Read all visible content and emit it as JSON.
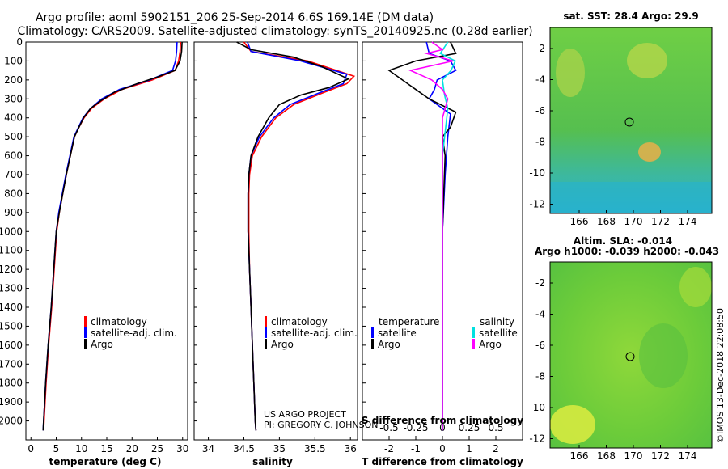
{
  "title_line1": "Argo profile: aoml 5902151_206 25-Sep-2014 6.6S 169.14E (DM data)",
  "title_line2": "Climatology: CARS2009. Satellite-adjusted climatology: synTS_20140925.nc (0.28d earlier)",
  "sst_title": "sat. SST: 28.4 Argo: 29.9",
  "sla_title1": "Altim. SLA: -0.014",
  "sla_title2": "Argo h1000: -0.039 h2000: -0.043",
  "credit1": "US ARGO PROJECT",
  "credit2": "PI: GREGORY C. JOHNSON",
  "watermark": "©IMOS 13-Dec-2018 22:08:50",
  "colors": {
    "climatology": "#ff0000",
    "satellite": "#0000ff",
    "argo": "#000000",
    "sat_salinity": "#00e0e0",
    "argo_salinity": "#ff00ff"
  },
  "depth_ticks": [
    "0",
    "100",
    "200",
    "300",
    "400",
    "500",
    "600",
    "700",
    "800",
    "900",
    "1000",
    "1100",
    "1200",
    "1300",
    "1400",
    "1500",
    "1600",
    "1700",
    "1800",
    "1900",
    "2000"
  ],
  "panels": {
    "temperature": {
      "xlabel": "temperature (deg C)",
      "xticks": [
        "0",
        "5",
        "10",
        "15",
        "20",
        "25",
        "30"
      ],
      "legend": [
        "climatology",
        "satellite-adj. clim.",
        "Argo"
      ]
    },
    "salinity": {
      "xlabel": "salinity",
      "xticks": [
        "34",
        "34.5",
        "35",
        "35.5",
        "36"
      ],
      "legend": [
        "climatology",
        "satellite-adj. clim.",
        "Argo"
      ]
    },
    "difference": {
      "xlabel": "T difference from climatology",
      "xticks": [
        "-2",
        "-1",
        "0",
        "1",
        "2"
      ],
      "xlabel_top": "S difference from climatology",
      "xticks_top": [
        "-0.5",
        "-0.25",
        "0",
        "0.25",
        "0.5"
      ],
      "legend_left_title": "temperature",
      "legend_right_title": "salinity",
      "legend_left": [
        "satellite",
        "Argo"
      ],
      "legend_right": [
        "satellite",
        "Argo"
      ]
    },
    "maps": {
      "yticks": [
        "-2",
        "-4",
        "-6",
        "-8",
        "-10",
        "-12"
      ],
      "xticks": [
        "166",
        "168",
        "170",
        "172",
        "174"
      ]
    }
  },
  "chart_data": [
    {
      "type": "line",
      "xlabel": "temperature (deg C)",
      "ylabel": "",
      "xlim": [
        -1,
        31
      ],
      "ylim": [
        2100,
        0
      ],
      "series": [
        {
          "name": "climatology",
          "points": [
            [
              29.6,
              0
            ],
            [
              29.5,
              50
            ],
            [
              29.2,
              100
            ],
            [
              28.5,
              150
            ],
            [
              24,
              200
            ],
            [
              18,
              250
            ],
            [
              14.5,
              300
            ],
            [
              12,
              350
            ],
            [
              10.5,
              400
            ],
            [
              9.5,
              450
            ],
            [
              8.6,
              500
            ],
            [
              7.8,
              600
            ],
            [
              7,
              700
            ],
            [
              6.3,
              800
            ],
            [
              5.6,
              900
            ],
            [
              5.1,
              1000
            ],
            [
              4.6,
              1200
            ],
            [
              4.1,
              1400
            ],
            [
              3.5,
              1600
            ],
            [
              3,
              1800
            ],
            [
              2.6,
              2000
            ],
            [
              2.5,
              2050
            ]
          ]
        },
        {
          "name": "satellite-adj. clim.",
          "points": [
            [
              28.9,
              0
            ],
            [
              28.8,
              50
            ],
            [
              28.6,
              100
            ],
            [
              28,
              150
            ],
            [
              23.5,
              200
            ],
            [
              17.5,
              250
            ],
            [
              14,
              300
            ],
            [
              11.8,
              350
            ],
            [
              10.3,
              400
            ],
            [
              9.4,
              450
            ],
            [
              8.5,
              500
            ],
            [
              7.7,
              600
            ],
            [
              6.9,
              700
            ],
            [
              6.2,
              800
            ],
            [
              5.5,
              900
            ],
            [
              5,
              1000
            ],
            [
              4.5,
              1200
            ],
            [
              4,
              1400
            ],
            [
              3.4,
              1600
            ],
            [
              2.9,
              1800
            ],
            [
              2.5,
              2000
            ],
            [
              2.4,
              2050
            ]
          ]
        },
        {
          "name": "Argo",
          "points": [
            [
              29.9,
              0
            ],
            [
              29.8,
              50
            ],
            [
              29.5,
              100
            ],
            [
              28.5,
              150
            ],
            [
              25,
              185
            ],
            [
              21,
              220
            ],
            [
              16.5,
              265
            ],
            [
              13.8,
              310
            ],
            [
              11.8,
              350
            ],
            [
              10.4,
              400
            ],
            [
              9.5,
              450
            ],
            [
              8.6,
              500
            ],
            [
              7.8,
              600
            ],
            [
              7,
              700
            ],
            [
              6.3,
              800
            ],
            [
              5.6,
              900
            ],
            [
              5,
              1000
            ],
            [
              4.5,
              1200
            ],
            [
              4,
              1400
            ],
            [
              3.4,
              1600
            ],
            [
              2.9,
              1800
            ],
            [
              2.5,
              2000
            ],
            [
              2.4,
              2050
            ]
          ]
        }
      ]
    },
    {
      "type": "line",
      "xlabel": "salinity",
      "ylabel": "",
      "xlim": [
        33.8,
        36.1
      ],
      "ylim": [
        2100,
        0
      ],
      "series": [
        {
          "name": "climatology",
          "points": [
            [
              34.5,
              0
            ],
            [
              34.6,
              50
            ],
            [
              35.4,
              100
            ],
            [
              36.05,
              180
            ],
            [
              35.95,
              220
            ],
            [
              35.6,
              270
            ],
            [
              35.2,
              330
            ],
            [
              34.95,
              400
            ],
            [
              34.75,
              500
            ],
            [
              34.62,
              600
            ],
            [
              34.58,
              700
            ],
            [
              34.57,
              800
            ],
            [
              34.57,
              1000
            ],
            [
              34.58,
              1200
            ],
            [
              34.6,
              1400
            ],
            [
              34.62,
              1600
            ],
            [
              34.64,
              1800
            ],
            [
              34.66,
              2000
            ],
            [
              34.67,
              2050
            ]
          ]
        },
        {
          "name": "satellite-adj. clim.",
          "points": [
            [
              34.55,
              0
            ],
            [
              34.6,
              50
            ],
            [
              35.3,
              100
            ],
            [
              35.95,
              170
            ],
            [
              35.9,
              220
            ],
            [
              35.55,
              270
            ],
            [
              35.15,
              330
            ],
            [
              34.92,
              400
            ],
            [
              34.72,
              500
            ],
            [
              34.6,
              600
            ],
            [
              34.57,
              700
            ],
            [
              34.56,
              800
            ],
            [
              34.56,
              1000
            ],
            [
              34.58,
              1200
            ],
            [
              34.6,
              1400
            ],
            [
              34.62,
              1600
            ],
            [
              34.64,
              1800
            ],
            [
              34.66,
              2000
            ],
            [
              34.67,
              2050
            ]
          ]
        },
        {
          "name": "Argo",
          "points": [
            [
              34.4,
              0
            ],
            [
              34.6,
              40
            ],
            [
              35.2,
              80
            ],
            [
              35.6,
              130
            ],
            [
              35.97,
              195
            ],
            [
              35.7,
              240
            ],
            [
              35.3,
              280
            ],
            [
              35.0,
              330
            ],
            [
              34.85,
              400
            ],
            [
              34.7,
              500
            ],
            [
              34.6,
              600
            ],
            [
              34.57,
              700
            ],
            [
              34.56,
              800
            ],
            [
              34.56,
              1000
            ],
            [
              34.58,
              1200
            ],
            [
              34.6,
              1400
            ],
            [
              34.62,
              1600
            ],
            [
              34.64,
              1800
            ],
            [
              34.66,
              2000
            ],
            [
              34.67,
              2050
            ]
          ]
        }
      ]
    },
    {
      "type": "line",
      "xlabel": "T difference from climatology",
      "xlabel_top": "S difference from climatology",
      "xlim": [
        -3,
        3
      ],
      "xlim_top": [
        -0.75,
        0.75
      ],
      "ylim": [
        2100,
        0
      ],
      "series": [
        {
          "name": "temperature satellite",
          "axis": "T",
          "points": [
            [
              -0.6,
              0
            ],
            [
              -0.5,
              60
            ],
            [
              0.3,
              100
            ],
            [
              0.5,
              150
            ],
            [
              -0.2,
              200
            ],
            [
              -0.3,
              250
            ],
            [
              -0.5,
              300
            ],
            [
              0.3,
              380
            ],
            [
              0.2,
              500
            ],
            [
              0.1,
              700
            ],
            [
              0,
              1000
            ],
            [
              0,
              1400
            ],
            [
              0,
              2050
            ]
          ]
        },
        {
          "name": "temperature Argo",
          "axis": "T",
          "points": [
            [
              0.3,
              0
            ],
            [
              0.5,
              60
            ],
            [
              -1,
              100
            ],
            [
              -2,
              150
            ],
            [
              -1.5,
              200
            ],
            [
              -0.5,
              300
            ],
            [
              0.5,
              370
            ],
            [
              0.3,
              450
            ],
            [
              0,
              500
            ],
            [
              0.1,
              600
            ],
            [
              0.05,
              800
            ],
            [
              0,
              1000
            ],
            [
              0,
              2050
            ]
          ]
        },
        {
          "name": "salinity satellite",
          "axis": "S",
          "points": [
            [
              0.05,
              0
            ],
            [
              -0.02,
              60
            ],
            [
              0.12,
              100
            ],
            [
              0.08,
              150
            ],
            [
              0.0,
              200
            ],
            [
              0.02,
              280
            ],
            [
              0.05,
              350
            ],
            [
              0.03,
              450
            ],
            [
              0.0,
              600
            ],
            [
              0.0,
              800
            ],
            [
              0.0,
              1200
            ],
            [
              0.0,
              1800
            ],
            [
              0.0,
              2050
            ]
          ]
        },
        {
          "name": "salinity Argo",
          "axis": "S",
          "points": [
            [
              -0.1,
              0
            ],
            [
              0.0,
              40
            ],
            [
              -0.15,
              60
            ],
            [
              0.1,
              100
            ],
            [
              -0.3,
              150
            ],
            [
              -0.1,
              200
            ],
            [
              0.0,
              250
            ],
            [
              0.05,
              300
            ],
            [
              0.0,
              400
            ],
            [
              0.0,
              600
            ],
            [
              0.0,
              1000
            ],
            [
              0.0,
              2050
            ]
          ]
        }
      ]
    }
  ]
}
